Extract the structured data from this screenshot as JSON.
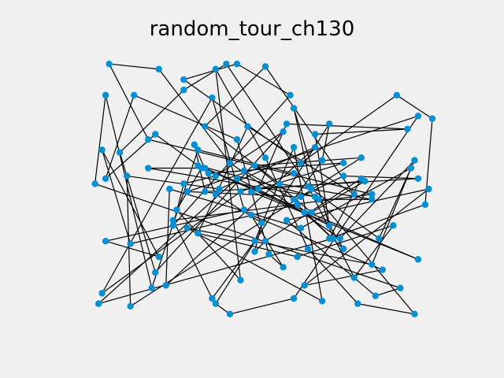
{
  "chart_data": {
    "type": "line",
    "title": "random_tour_ch130",
    "xlabel": "",
    "ylabel": "",
    "axes_visible": false,
    "grid": false,
    "legend": "none",
    "xlim": [
      -0.05,
      1.05
    ],
    "ylim": [
      -0.05,
      1.05
    ],
    "colors": {
      "background": "#f0f0f0",
      "edge": "#000000",
      "point": "#008fd5"
    },
    "series": [
      {
        "values": [
          [
            0.21,
            0.18
          ],
          [
            0.11,
            0.64
          ],
          [
            0.29,
            0.88
          ],
          [
            0.41,
            0.98
          ],
          [
            0.64,
            0.51
          ],
          [
            0.77,
            0.16
          ],
          [
            0.88,
            0.36
          ],
          [
            0.61,
            0.24
          ],
          [
            0.33,
            0.33
          ],
          [
            0.47,
            0.74
          ],
          [
            0.77,
            0.48
          ],
          [
            0.52,
            0.97
          ],
          [
            0.35,
            0.74
          ],
          [
            0.56,
            0.52
          ],
          [
            0.82,
            0.46
          ],
          [
            0.67,
            0.46
          ],
          [
            0.94,
            0.02
          ],
          [
            0.78,
            0.06
          ],
          [
            0.64,
            0.27
          ],
          [
            0.52,
            0.62
          ],
          [
            0.38,
            0.96
          ],
          [
            0.45,
            0.15
          ],
          [
            0.27,
            0.42
          ],
          [
            0.34,
            0.58
          ],
          [
            0.21,
            0.71
          ],
          [
            0.07,
            0.54
          ],
          [
            0.15,
            0.86
          ],
          [
            0.44,
            0.69
          ],
          [
            0.53,
            0.25
          ],
          [
            0.57,
            0.2
          ],
          [
            0.48,
            0.4
          ],
          [
            0.85,
            0.19
          ],
          [
            0.63,
            0.13
          ],
          [
            0.98,
            0.5
          ],
          [
            0.58,
            0.38
          ],
          [
            0.83,
            0.09
          ],
          [
            0.9,
            0.12
          ],
          [
            0.04,
            0.52
          ],
          [
            0.07,
            0.86
          ],
          [
            0.2,
            0.12
          ],
          [
            0.33,
            0.65
          ],
          [
            0.6,
            0.56
          ],
          [
            0.45,
            0.49
          ],
          [
            0.06,
            0.1
          ],
          [
            0.37,
            0.85
          ],
          [
            0.46,
            0.42
          ],
          [
            0.07,
            0.3
          ],
          [
            0.22,
            0.24
          ],
          [
            0.06,
            0.65
          ],
          [
            0.14,
            0.29
          ],
          [
            0.61,
            0.44
          ],
          [
            0.71,
            0.31
          ],
          [
            0.05,
            0.06
          ],
          [
            0.44,
            0.54
          ],
          [
            0.7,
            0.36
          ],
          [
            0.66,
            0.71
          ],
          [
            0.92,
            0.73
          ],
          [
            0.58,
            0.75
          ],
          [
            0.5,
            0.5
          ],
          [
            0.8,
            0.53
          ],
          [
            0.65,
            0.41
          ],
          [
            0.49,
            0.59
          ],
          [
            0.79,
            0.62
          ],
          [
            0.14,
            0.05
          ],
          [
            0.13,
            0.55
          ],
          [
            0.39,
            0.5
          ],
          [
            0.66,
            0.66
          ],
          [
            0.24,
            0.13
          ],
          [
            0.25,
            0.5
          ],
          [
            0.62,
            0.35
          ],
          [
            0.93,
            0.58
          ],
          [
            0.82,
            0.21
          ],
          [
            0.3,
            0.35
          ],
          [
            0.68,
            0.07
          ],
          [
            0.6,
            0.66
          ],
          [
            0.49,
            0.3
          ],
          [
            0.37,
            0.08
          ],
          [
            0.26,
            0.38
          ],
          [
            0.82,
            0.48
          ],
          [
            0.19,
            0.69
          ],
          [
            0.08,
            0.98
          ],
          [
            0.22,
            0.96
          ],
          [
            0.42,
            0.6
          ],
          [
            0.73,
            0.31
          ],
          [
            0.94,
            0.61
          ],
          [
            0.84,
            0.31
          ],
          [
            0.65,
            0.5
          ],
          [
            0.6,
            0.81
          ],
          [
            0.7,
            0.36
          ],
          [
            0.74,
            0.27
          ],
          [
            0.63,
            0.41
          ],
          [
            0.33,
            0.59
          ],
          [
            0.66,
            0.47
          ],
          [
            0.19,
            0.58
          ],
          [
            0.35,
            0.58
          ],
          [
            0.95,
            0.23
          ],
          [
            0.48,
            0.49
          ],
          [
            0.74,
            0.6
          ],
          [
            0.36,
            0.56
          ],
          [
            0.46,
            0.57
          ],
          [
            0.6,
            0.46
          ],
          [
            0.68,
            0.61
          ],
          [
            0.7,
            0.75
          ],
          [
            0.38,
            0.06
          ],
          [
            0.42,
            0.02
          ],
          [
            0.6,
            0.08
          ],
          [
            0.95,
            0.78
          ],
          [
            0.3,
            0.49
          ],
          [
            0.62,
            0.47
          ],
          [
            0.74,
            0.55
          ],
          [
            0.95,
            0.54
          ],
          [
            0.35,
            0.49
          ],
          [
            0.32,
            0.67
          ],
          [
            0.38,
            0.48
          ],
          [
            0.51,
            0.37
          ],
          [
            0.49,
            0.26
          ],
          [
            0.52,
            0.3
          ],
          [
            0.79,
            0.54
          ],
          [
            0.7,
            0.31
          ],
          [
            0.97,
            0.44
          ],
          [
            0.99,
            0.77
          ],
          [
            0.89,
            0.86
          ],
          [
            0.62,
            0.6
          ],
          [
            0.29,
            0.92
          ],
          [
            0.44,
            0.98
          ],
          [
            0.59,
            0.86
          ],
          [
            0.26,
            0.36
          ],
          [
            0.29,
            0.52
          ],
          [
            0.38,
            0.55
          ],
          [
            0.57,
            0.72
          ]
        ]
      }
    ]
  }
}
